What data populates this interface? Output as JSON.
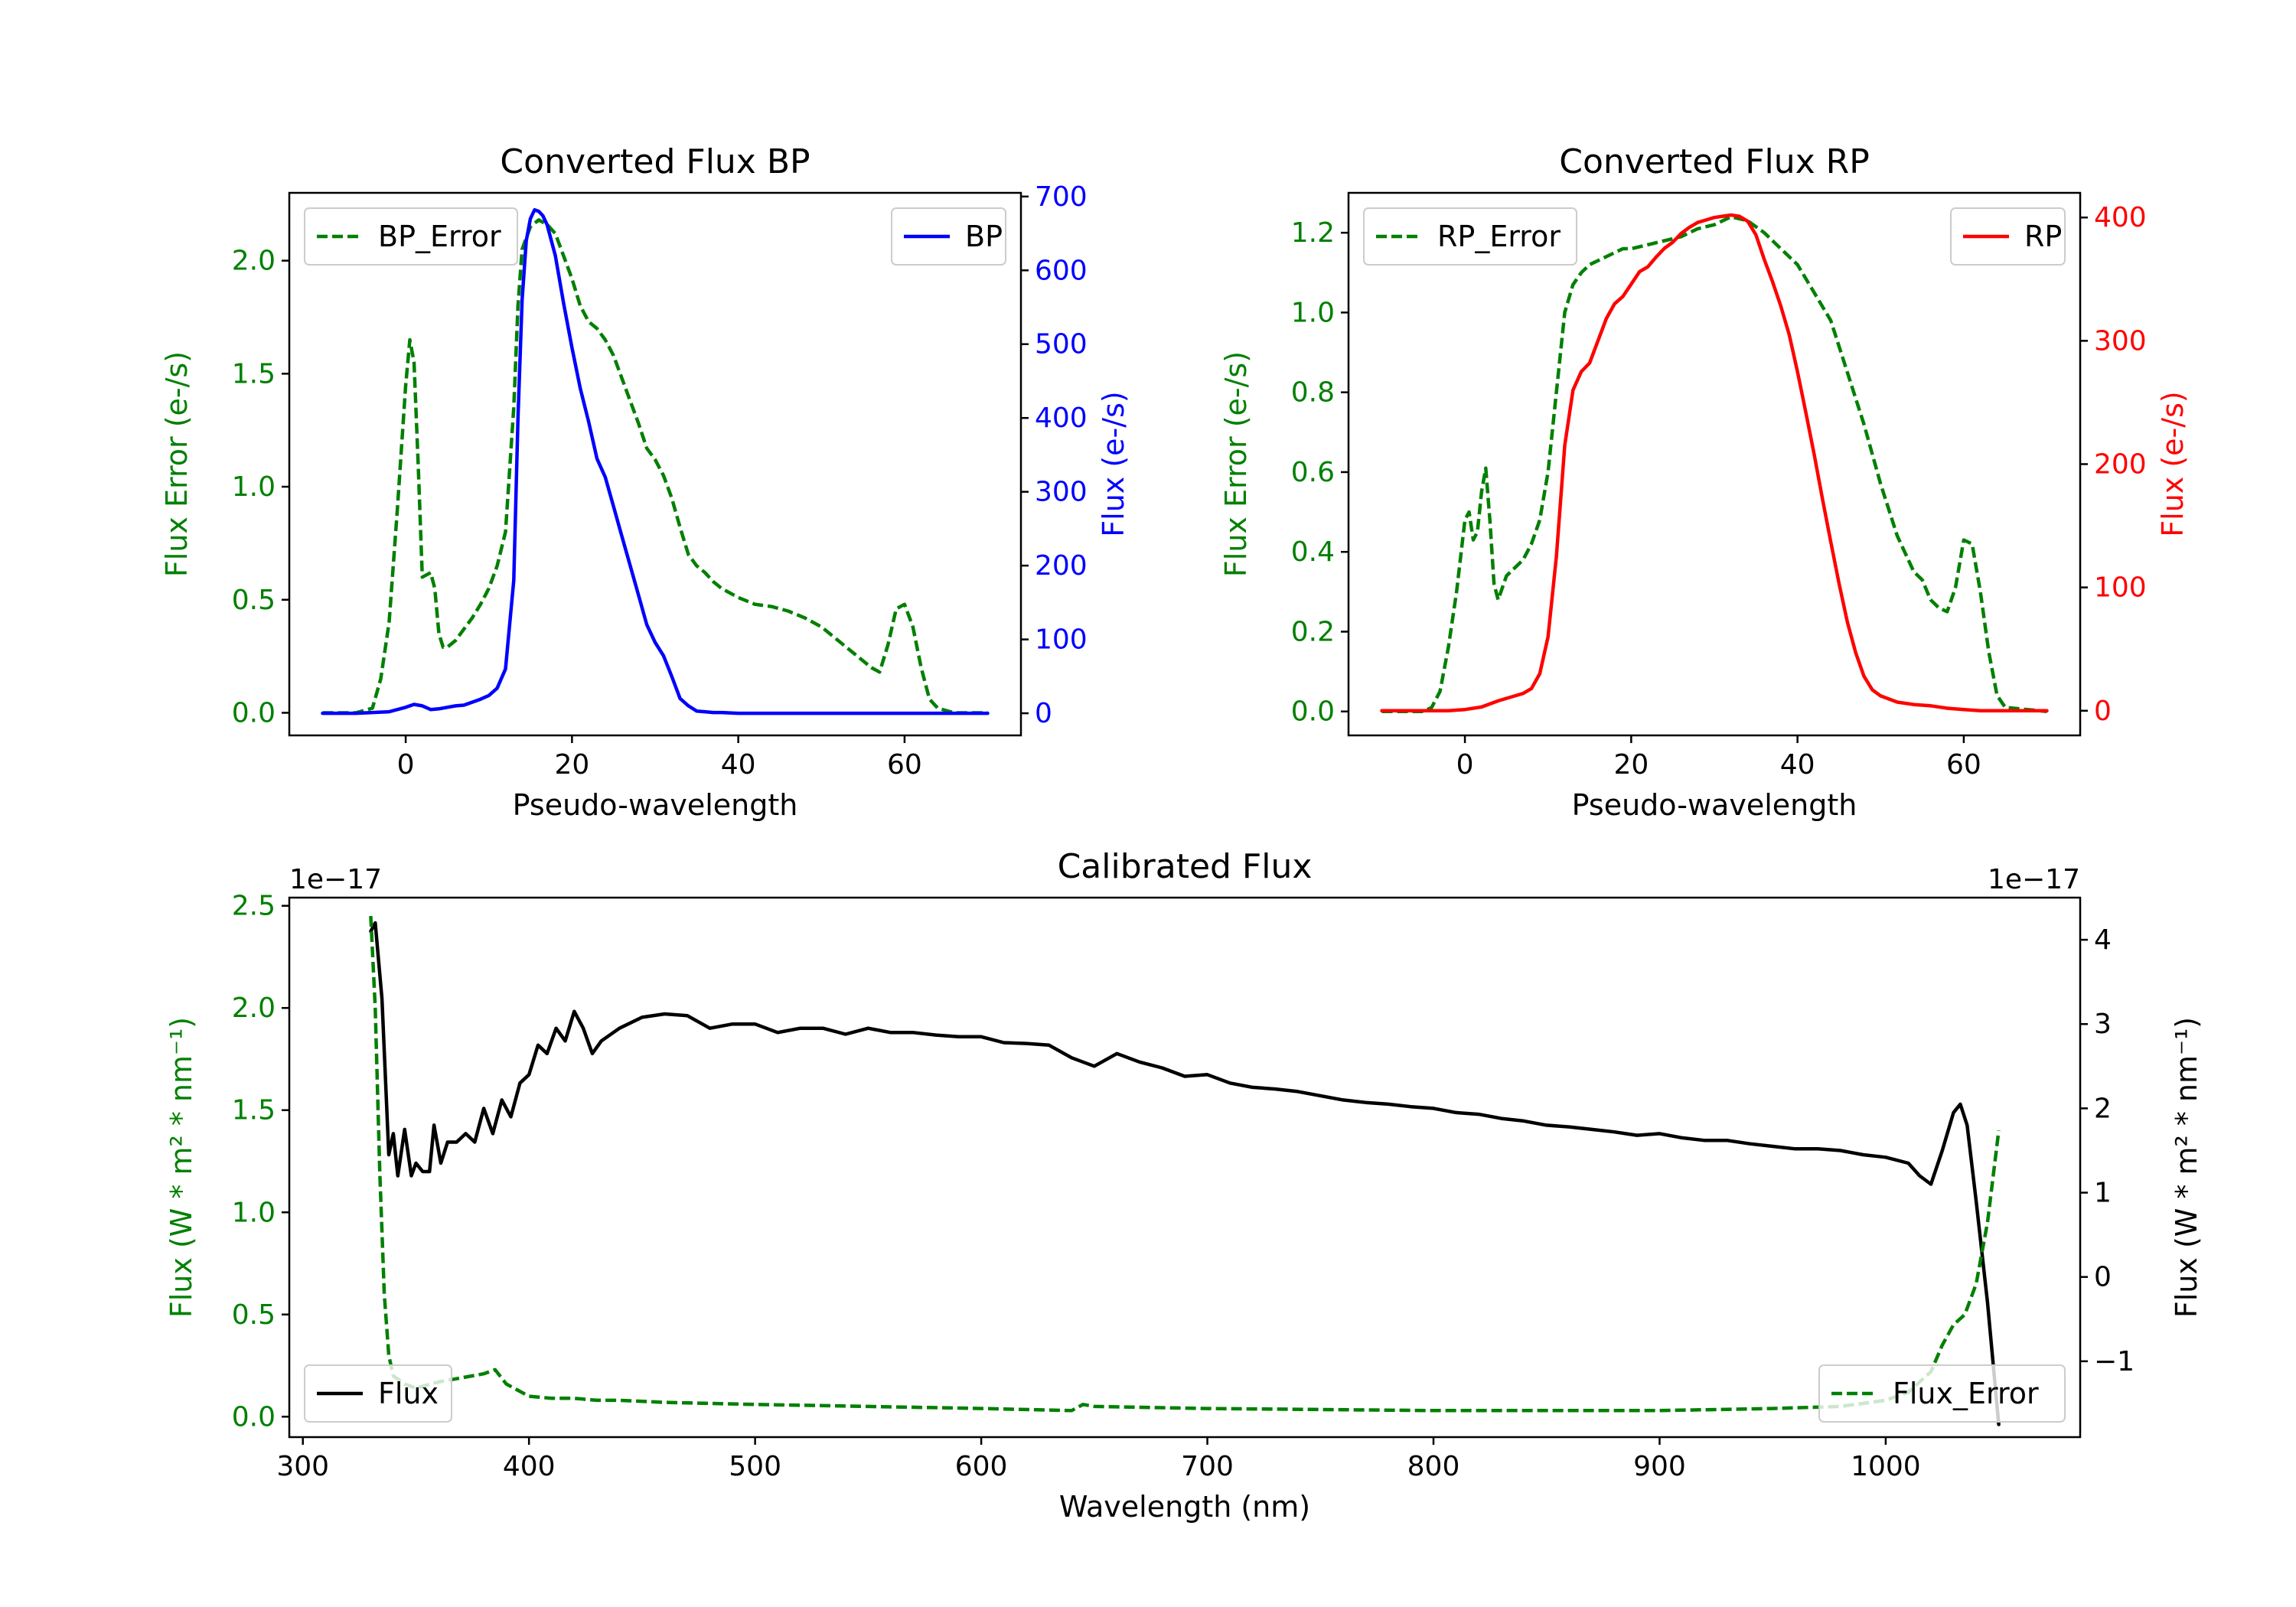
{
  "chart_data": [
    {
      "id": "bp",
      "type": "line",
      "title": "Converted Flux BP",
      "xlabel": "Pseudo-wavelength",
      "xlim": [
        -14,
        74
      ],
      "xticks": [
        0,
        20,
        40,
        60
      ],
      "xtick_labels": [
        "0",
        "20",
        "40",
        "60"
      ],
      "left_axis": {
        "label": "Flux Error (e-/s)",
        "color": "#008000",
        "lim": [
          -0.1,
          2.3
        ],
        "ticks": [
          0.0,
          0.5,
          1.0,
          1.5,
          2.0
        ],
        "tick_labels": [
          "0.0",
          "0.5",
          "1.0",
          "1.5",
          "2.0"
        ]
      },
      "right_axis": {
        "label": "Flux (e-/s)",
        "color": "#0000ff",
        "lim": [
          -30,
          705
        ],
        "ticks": [
          0,
          100,
          200,
          300,
          400,
          500,
          600,
          700
        ],
        "tick_labels": [
          "0",
          "100",
          "200",
          "300",
          "400",
          "500",
          "600",
          "700"
        ]
      },
      "series": [
        {
          "name": "BP_Error",
          "axis": "left",
          "color": "#008000",
          "style": "dashed",
          "x": [
            -10,
            -6,
            -4,
            -3,
            -2,
            -1,
            0,
            0.5,
            1,
            1.5,
            2,
            3,
            3.5,
            4,
            4.5,
            5,
            6,
            7,
            8,
            9,
            10,
            11,
            12,
            13,
            13.5,
            14,
            14.5,
            15,
            16,
            17,
            18,
            19,
            20,
            21,
            22,
            23,
            24,
            25,
            26,
            27,
            28,
            29,
            30,
            31,
            32,
            33,
            34,
            35,
            36,
            37,
            38,
            40,
            42,
            44,
            46,
            48,
            50,
            52,
            54,
            56,
            57,
            58,
            59,
            60,
            61,
            62,
            63,
            64,
            66,
            68,
            70
          ],
          "values": [
            0,
            0,
            0.02,
            0.15,
            0.4,
            0.9,
            1.45,
            1.65,
            1.55,
            1.1,
            0.6,
            0.62,
            0.55,
            0.35,
            0.29,
            0.29,
            0.32,
            0.37,
            0.42,
            0.48,
            0.55,
            0.65,
            0.8,
            1.35,
            1.8,
            2.05,
            2.1,
            2.15,
            2.18,
            2.16,
            2.12,
            2.02,
            1.92,
            1.8,
            1.73,
            1.7,
            1.65,
            1.58,
            1.48,
            1.38,
            1.28,
            1.17,
            1.12,
            1.05,
            0.95,
            0.82,
            0.7,
            0.65,
            0.62,
            0.58,
            0.55,
            0.51,
            0.48,
            0.47,
            0.45,
            0.42,
            0.38,
            0.32,
            0.26,
            0.2,
            0.18,
            0.3,
            0.46,
            0.48,
            0.38,
            0.2,
            0.06,
            0.02,
            0,
            0,
            0
          ]
        },
        {
          "name": "BP",
          "axis": "right",
          "color": "#0000ff",
          "style": "solid",
          "x": [
            -10,
            -6,
            -4,
            -2,
            0,
            1,
            2,
            3,
            4,
            5,
            6,
            7,
            8,
            9,
            10,
            11,
            12,
            13,
            13.5,
            14,
            14.5,
            15,
            15.5,
            16,
            16.5,
            17,
            18,
            19,
            20,
            21,
            22,
            23,
            24,
            25,
            26,
            27,
            28,
            29,
            30,
            31,
            32,
            33,
            34,
            35,
            36,
            37,
            38,
            40,
            42,
            44,
            46,
            48,
            50,
            52,
            55,
            60,
            65,
            70
          ],
          "values": [
            0,
            0,
            1,
            2,
            8,
            12,
            10,
            5,
            6,
            8,
            10,
            11,
            15,
            19,
            24,
            34,
            60,
            180,
            400,
            560,
            640,
            670,
            682,
            680,
            674,
            662,
            620,
            555,
            495,
            440,
            395,
            345,
            320,
            280,
            240,
            200,
            160,
            120,
            96,
            78,
            50,
            20,
            10,
            3,
            2,
            1,
            1,
            0,
            0,
            0,
            0,
            0,
            0,
            0,
            0,
            0,
            0,
            0
          ]
        }
      ],
      "legend": [
        {
          "label": "BP_Error",
          "position": "upper-left"
        },
        {
          "label": "BP",
          "position": "upper-right"
        }
      ]
    },
    {
      "id": "rp",
      "type": "line",
      "title": "Converted Flux RP",
      "xlabel": "Pseudo-wavelength",
      "xlim": [
        -14,
        74
      ],
      "xticks": [
        0,
        20,
        40,
        60
      ],
      "xtick_labels": [
        "0",
        "20",
        "40",
        "60"
      ],
      "left_axis": {
        "label": "Flux Error (e-/s)",
        "color": "#008000",
        "lim": [
          -0.06,
          1.3
        ],
        "ticks": [
          0.0,
          0.2,
          0.4,
          0.6,
          0.8,
          1.0,
          1.2
        ],
        "tick_labels": [
          "0.0",
          "0.2",
          "0.4",
          "0.6",
          "0.8",
          "1.0",
          "1.2"
        ]
      },
      "right_axis": {
        "label": "Flux (e-/s)",
        "color": "#ff0000",
        "lim": [
          -20,
          420
        ],
        "ticks": [
          0,
          100,
          200,
          300,
          400
        ],
        "tick_labels": [
          "0",
          "100",
          "200",
          "300",
          "400"
        ]
      },
      "series": [
        {
          "name": "RP_Error",
          "axis": "left",
          "color": "#008000",
          "style": "dashed",
          "x": [
            -10,
            -5,
            -4,
            -3,
            -2,
            -1,
            0,
            0.5,
            1,
            1.5,
            2,
            2.5,
            3,
            3.5,
            4,
            5,
            6,
            7,
            8,
            9,
            10,
            11,
            12,
            13,
            14,
            15,
            16,
            17,
            18,
            19,
            20,
            22,
            24,
            26,
            28,
            30,
            32,
            34,
            36,
            38,
            40,
            42,
            44,
            46,
            48,
            50,
            52,
            54,
            55,
            56,
            57,
            58,
            59,
            60,
            61,
            62,
            63,
            64,
            65,
            70
          ],
          "values": [
            0,
            0,
            0.01,
            0.05,
            0.16,
            0.3,
            0.48,
            0.5,
            0.43,
            0.45,
            0.55,
            0.61,
            0.48,
            0.32,
            0.28,
            0.34,
            0.36,
            0.38,
            0.42,
            0.48,
            0.6,
            0.8,
            1.0,
            1.07,
            1.1,
            1.12,
            1.13,
            1.14,
            1.15,
            1.16,
            1.16,
            1.17,
            1.18,
            1.19,
            1.21,
            1.22,
            1.24,
            1.23,
            1.2,
            1.16,
            1.12,
            1.05,
            0.98,
            0.85,
            0.72,
            0.57,
            0.44,
            0.35,
            0.33,
            0.28,
            0.26,
            0.25,
            0.31,
            0.43,
            0.42,
            0.3,
            0.15,
            0.04,
            0.01,
            0
          ]
        },
        {
          "name": "RP",
          "axis": "right",
          "color": "#ff0000",
          "style": "solid",
          "x": [
            -10,
            -4,
            -2,
            0,
            2,
            4,
            6,
            7,
            8,
            9,
            10,
            11,
            12,
            13,
            14,
            15,
            16,
            17,
            18,
            19,
            20,
            21,
            22,
            23,
            24,
            25,
            26,
            27,
            28,
            29,
            30,
            31,
            32,
            33,
            34,
            35,
            36,
            37,
            38,
            39,
            40,
            41,
            42,
            43,
            44,
            45,
            46,
            47,
            48,
            49,
            50,
            52,
            54,
            56,
            58,
            60,
            62,
            65,
            70
          ],
          "values": [
            0,
            0,
            0,
            1,
            3,
            8,
            12,
            14,
            18,
            30,
            60,
            125,
            215,
            260,
            275,
            282,
            300,
            318,
            330,
            336,
            346,
            356,
            360,
            368,
            375,
            380,
            387,
            392,
            396,
            398,
            400,
            401,
            402,
            401,
            397,
            386,
            366,
            348,
            328,
            305,
            275,
            242,
            208,
            172,
            137,
            103,
            72,
            47,
            28,
            17,
            12,
            7,
            5,
            4,
            2,
            1,
            0,
            0,
            0
          ]
        }
      ],
      "legend": [
        {
          "label": "RP_Error",
          "position": "upper-left"
        },
        {
          "label": "RP",
          "position": "upper-right"
        }
      ]
    },
    {
      "id": "cal",
      "type": "line",
      "title": "Calibrated Flux",
      "xlabel": "Wavelength (nm)",
      "xlim": [
        294,
        1086
      ],
      "xticks": [
        300,
        400,
        500,
        600,
        700,
        800,
        900,
        1000
      ],
      "xtick_labels": [
        "300",
        "400",
        "500",
        "600",
        "700",
        "800",
        "900",
        "1000"
      ],
      "left_axis": {
        "label": "Flux (W * m² * nm⁻¹)",
        "color": "#008000",
        "offset_text": "1e−17",
        "lim": [
          -0.1,
          2.54
        ],
        "ticks": [
          0.0,
          0.5,
          1.0,
          1.5,
          2.0,
          2.5
        ],
        "tick_labels": [
          "0.0",
          "0.5",
          "1.0",
          "1.5",
          "2.0",
          "2.5"
        ]
      },
      "right_axis": {
        "label": "Flux (W * m² * nm⁻¹)",
        "color": "#000000",
        "offset_text": "1e−17",
        "lim": [
          -1.9,
          4.5
        ],
        "ticks": [
          -1,
          0,
          1,
          2,
          3,
          4
        ],
        "tick_labels": [
          "−1",
          "0",
          "1",
          "2",
          "3",
          "4"
        ]
      },
      "series": [
        {
          "name": "Flux",
          "axis": "right",
          "color": "#000000",
          "style": "solid",
          "x": [
            330,
            332,
            335,
            338,
            340,
            342,
            345,
            348,
            350,
            353,
            356,
            358,
            361,
            364,
            368,
            372,
            376,
            380,
            384,
            388,
            392,
            396,
            400,
            404,
            408,
            412,
            416,
            420,
            424,
            428,
            432,
            440,
            450,
            460,
            470,
            480,
            490,
            500,
            510,
            520,
            530,
            540,
            550,
            560,
            570,
            580,
            590,
            600,
            610,
            620,
            630,
            640,
            650,
            660,
            670,
            680,
            690,
            700,
            710,
            720,
            730,
            740,
            750,
            760,
            770,
            780,
            790,
            800,
            810,
            820,
            830,
            840,
            850,
            860,
            870,
            880,
            890,
            900,
            910,
            920,
            930,
            940,
            950,
            960,
            970,
            980,
            990,
            1000,
            1010,
            1015,
            1020,
            1025,
            1030,
            1033,
            1036,
            1040,
            1045,
            1050
          ],
          "values": [
            4.1,
            4.2,
            3.3,
            1.45,
            1.7,
            1.2,
            1.75,
            1.2,
            1.35,
            1.25,
            1.25,
            1.8,
            1.35,
            1.6,
            1.6,
            1.7,
            1.6,
            2.0,
            1.7,
            2.1,
            1.9,
            2.3,
            2.4,
            2.75,
            2.65,
            2.95,
            2.8,
            3.15,
            2.95,
            2.65,
            2.8,
            2.95,
            3.08,
            3.12,
            3.1,
            2.95,
            3.0,
            3.0,
            2.9,
            2.95,
            2.95,
            2.88,
            2.95,
            2.9,
            2.9,
            2.87,
            2.85,
            2.85,
            2.78,
            2.77,
            2.75,
            2.6,
            2.5,
            2.65,
            2.55,
            2.48,
            2.38,
            2.4,
            2.3,
            2.25,
            2.23,
            2.2,
            2.15,
            2.1,
            2.07,
            2.05,
            2.02,
            2.0,
            1.95,
            1.93,
            1.88,
            1.85,
            1.8,
            1.78,
            1.75,
            1.72,
            1.68,
            1.7,
            1.65,
            1.62,
            1.62,
            1.58,
            1.55,
            1.52,
            1.52,
            1.5,
            1.45,
            1.42,
            1.35,
            1.2,
            1.1,
            1.5,
            1.95,
            2.05,
            1.8,
            0.9,
            -0.3,
            -1.75
          ]
        },
        {
          "name": "Flux_Error",
          "axis": "left",
          "color": "#008000",
          "style": "dashed",
          "x": [
            330,
            332,
            334,
            336,
            338,
            340,
            345,
            350,
            360,
            370,
            380,
            385,
            390,
            395,
            400,
            410,
            420,
            430,
            440,
            460,
            500,
            550,
            600,
            640,
            645,
            650,
            700,
            800,
            900,
            950,
            980,
            1000,
            1010,
            1020,
            1025,
            1030,
            1035,
            1040,
            1045,
            1050
          ],
          "values": [
            2.45,
            2.0,
            1.2,
            0.6,
            0.3,
            0.2,
            0.16,
            0.14,
            0.17,
            0.19,
            0.21,
            0.23,
            0.16,
            0.13,
            0.1,
            0.09,
            0.09,
            0.08,
            0.08,
            0.07,
            0.06,
            0.05,
            0.04,
            0.03,
            0.06,
            0.05,
            0.04,
            0.03,
            0.03,
            0.04,
            0.05,
            0.08,
            0.12,
            0.22,
            0.35,
            0.45,
            0.5,
            0.65,
            0.95,
            1.4
          ]
        }
      ],
      "legend": [
        {
          "label": "Flux",
          "position": "lower-left"
        },
        {
          "label": "Flux_Error",
          "position": "lower-right"
        }
      ]
    }
  ]
}
